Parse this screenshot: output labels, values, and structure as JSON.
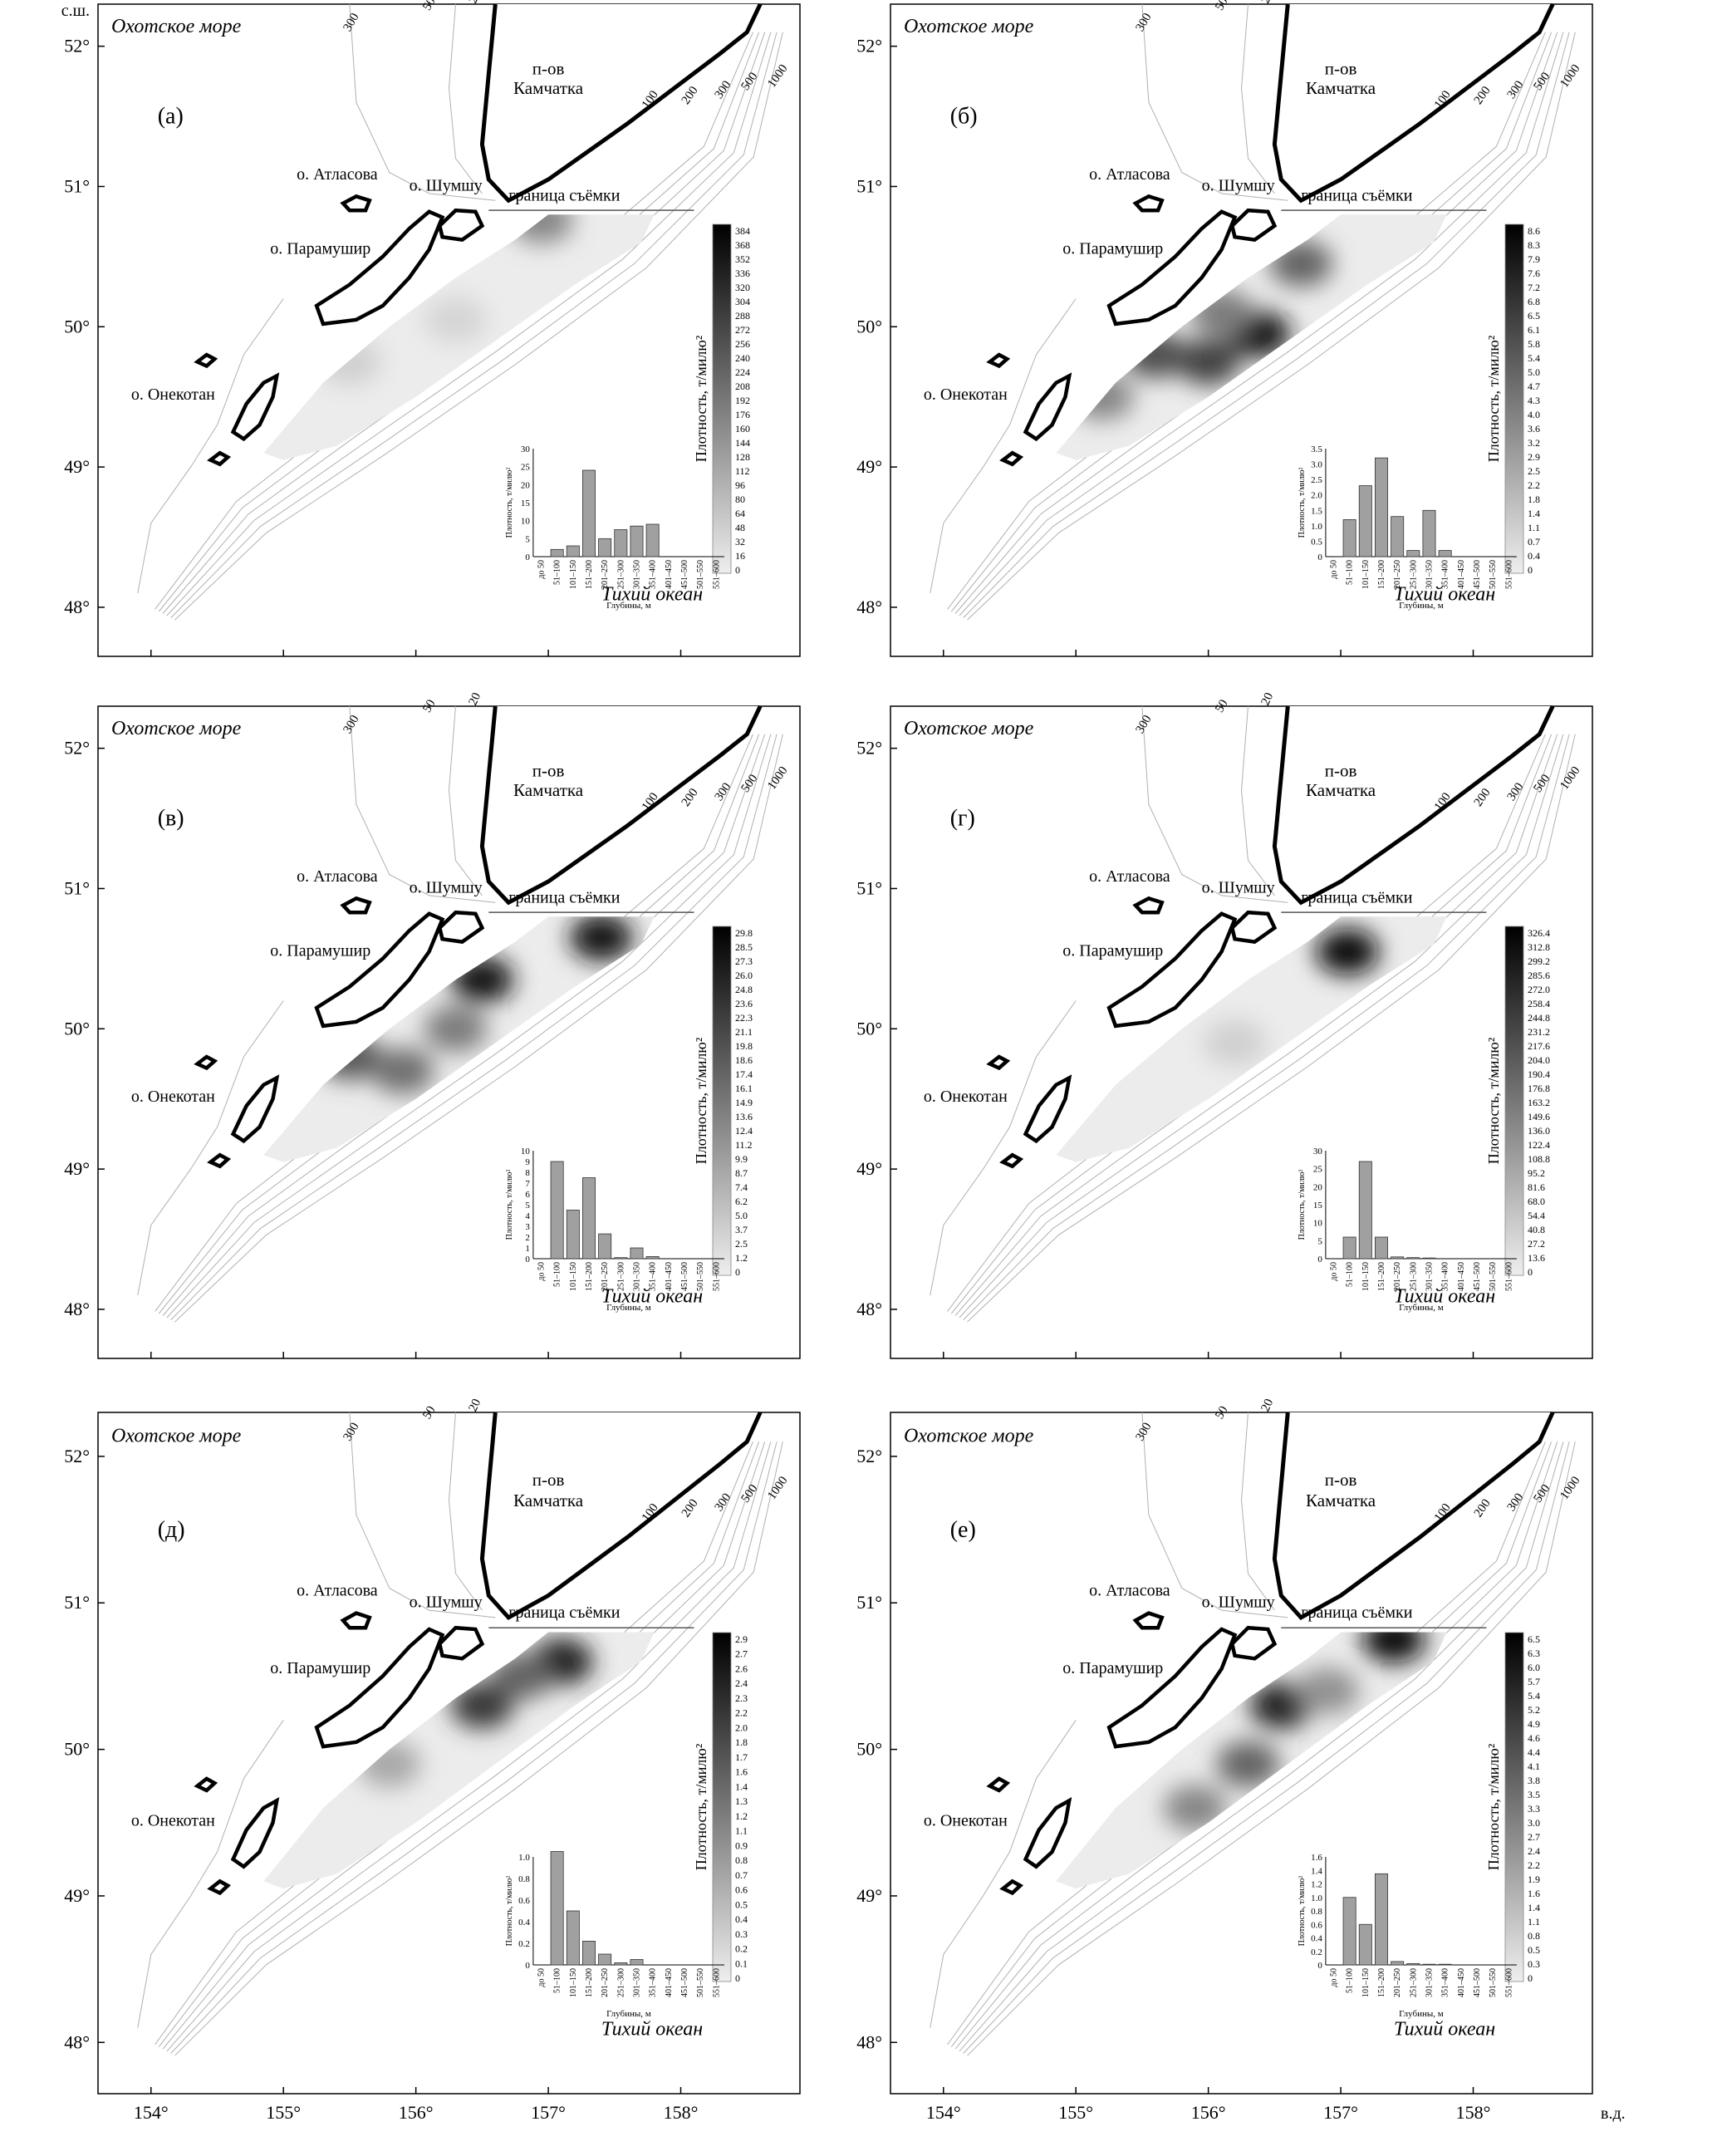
{
  "labels": {
    "sea": "Охотское море",
    "ocean": "Тихий океан",
    "peninsula_line1": "п-ов",
    "peninsula_line2": "Камчатка",
    "island_atlasova": "о. Атласова",
    "island_shumshu": "о. Шумшу",
    "island_paramushir": "о. Парамушир",
    "island_onekotan": "о. Онекотан",
    "survey_border": "граница съёмки",
    "colorbar_title": "Плотность, т/милю²",
    "hist_ylabel": "Плотность, т/милю²",
    "hist_xlabel": "Глубины, м",
    "lat_unit": "с.ш.",
    "lon_unit": "в.д."
  },
  "isobaths_north": [
    "300",
    "50",
    "20"
  ],
  "isobaths_east": [
    "100",
    "200",
    "300",
    "500",
    "1000"
  ],
  "lat_ticks": [
    "52°",
    "51°",
    "50°",
    "49°",
    "48°"
  ],
  "lon_ticks": [
    "154°",
    "155°",
    "156°",
    "157°",
    "158°"
  ],
  "depth_bins": [
    "до 50",
    "51–100",
    "101–150",
    "151–200",
    "201–250",
    "251–300",
    "301–350",
    "351–400",
    "401–450",
    "451–500",
    "501–550",
    "551–600"
  ],
  "panels": [
    {
      "letter": "(а)",
      "colorbar_ticks": [
        "384",
        "368",
        "352",
        "336",
        "320",
        "304",
        "288",
        "272",
        "256",
        "240",
        "224",
        "208",
        "192",
        "176",
        "160",
        "144",
        "128",
        "112",
        "96",
        "80",
        "64",
        "48",
        "32",
        "16",
        "0"
      ],
      "hist_yticks": [
        "30",
        "25",
        "20",
        "15",
        "10",
        "5",
        "0"
      ],
      "hist_ymax": 30,
      "hist_values": [
        0,
        2,
        3,
        24,
        5,
        7.5,
        8.5,
        9,
        0,
        0,
        0,
        0
      ],
      "hotspots": [
        {
          "x": 156.95,
          "y": 50.76,
          "v": 0.45
        },
        {
          "x": 155.5,
          "y": 49.75,
          "v": 0.12
        },
        {
          "x": 156.3,
          "y": 50.05,
          "v": 0.1
        }
      ]
    },
    {
      "letter": "(б)",
      "colorbar_ticks": [
        "8.6",
        "8.3",
        "7.9",
        "7.6",
        "7.2",
        "6.8",
        "6.5",
        "6.1",
        "5.8",
        "5.4",
        "5.0",
        "4.7",
        "4.3",
        "4.0",
        "3.6",
        "3.2",
        "2.9",
        "2.5",
        "2.2",
        "1.8",
        "1.4",
        "1.1",
        "0.7",
        "0.4",
        "0"
      ],
      "hist_yticks": [
        "3.5",
        "3.0",
        "2.5",
        "2.0",
        "1.5",
        "1.0",
        "0.5",
        "0"
      ],
      "hist_ymax": 3.5,
      "hist_values": [
        0,
        1.2,
        2.3,
        3.2,
        1.3,
        0.2,
        1.5,
        0.2,
        0,
        0,
        0,
        0
      ],
      "hotspots": [
        {
          "x": 156.38,
          "y": 49.95,
          "v": 0.95
        },
        {
          "x": 156.0,
          "y": 49.75,
          "v": 0.75
        },
        {
          "x": 155.6,
          "y": 49.8,
          "v": 0.7
        },
        {
          "x": 156.7,
          "y": 50.45,
          "v": 0.6
        },
        {
          "x": 155.2,
          "y": 49.5,
          "v": 0.45
        },
        {
          "x": 156.1,
          "y": 50.1,
          "v": 0.5
        }
      ]
    },
    {
      "letter": "(в)",
      "colorbar_ticks": [
        "29.8",
        "28.5",
        "27.3",
        "26.0",
        "24.8",
        "23.6",
        "22.3",
        "21.1",
        "19.8",
        "18.6",
        "17.4",
        "16.1",
        "14.9",
        "13.6",
        "12.4",
        "11.2",
        "9.9",
        "8.7",
        "7.4",
        "6.2",
        "5.0",
        "3.7",
        "2.5",
        "1.2",
        "0"
      ],
      "hist_yticks": [
        "10",
        "9",
        "8",
        "7",
        "6",
        "5",
        "4",
        "3",
        "2",
        "1",
        "0"
      ],
      "hist_ymax": 10,
      "hist_values": [
        0,
        9,
        4.5,
        7.5,
        2.3,
        0.1,
        1.0,
        0.2,
        0,
        0,
        0,
        0
      ],
      "hotspots": [
        {
          "x": 156.5,
          "y": 50.35,
          "v": 0.95
        },
        {
          "x": 157.4,
          "y": 50.65,
          "v": 0.95
        },
        {
          "x": 155.5,
          "y": 49.8,
          "v": 0.65
        },
        {
          "x": 155.9,
          "y": 49.7,
          "v": 0.55
        },
        {
          "x": 156.3,
          "y": 50.0,
          "v": 0.5
        }
      ]
    },
    {
      "letter": "(г)",
      "colorbar_ticks": [
        "326.4",
        "312.8",
        "299.2",
        "285.6",
        "272.0",
        "258.4",
        "244.8",
        "231.2",
        "217.6",
        "204.0",
        "190.4",
        "176.8",
        "163.2",
        "149.6",
        "136.0",
        "122.4",
        "108.8",
        "95.2",
        "81.6",
        "68.0",
        "54.4",
        "40.8",
        "27.2",
        "13.6",
        "0"
      ],
      "hist_yticks": [
        "30",
        "25",
        "20",
        "15",
        "10",
        "5",
        "0"
      ],
      "hist_ymax": 30,
      "hist_values": [
        0,
        6,
        27,
        6,
        0.5,
        0.3,
        0.2,
        0,
        0,
        0,
        0,
        0
      ],
      "hotspots": [
        {
          "x": 157.05,
          "y": 50.55,
          "v": 1.0
        },
        {
          "x": 156.2,
          "y": 49.9,
          "v": 0.12
        }
      ]
    },
    {
      "letter": "(д)",
      "colorbar_ticks": [
        "2.9",
        "2.7",
        "2.6",
        "2.4",
        "2.3",
        "2.2",
        "2.0",
        "1.8",
        "1.7",
        "1.6",
        "1.4",
        "1.3",
        "1.2",
        "1.1",
        "0.9",
        "0.8",
        "0.7",
        "0.6",
        "0.5",
        "0.4",
        "0.3",
        "0.2",
        "0.1",
        "0"
      ],
      "hist_yticks": [
        "1.0",
        "0.8",
        "0.6",
        "0.4",
        "0.2",
        "0"
      ],
      "hist_ymax": 1.1,
      "hist_values": [
        0,
        1.05,
        0.5,
        0.22,
        0.1,
        0.02,
        0.05,
        0,
        0,
        0,
        0,
        0
      ],
      "hotspots": [
        {
          "x": 157.1,
          "y": 50.6,
          "v": 0.9
        },
        {
          "x": 156.5,
          "y": 50.3,
          "v": 0.8
        },
        {
          "x": 156.8,
          "y": 50.5,
          "v": 0.6
        },
        {
          "x": 155.8,
          "y": 49.9,
          "v": 0.3
        }
      ]
    },
    {
      "letter": "(е)",
      "colorbar_ticks": [
        "6.5",
        "6.3",
        "6.0",
        "5.7",
        "5.4",
        "5.2",
        "4.9",
        "4.6",
        "4.4",
        "4.1",
        "3.8",
        "3.5",
        "3.3",
        "3.0",
        "2.7",
        "2.4",
        "2.2",
        "1.9",
        "1.6",
        "1.4",
        "1.1",
        "0.8",
        "0.5",
        "0.3",
        "0"
      ],
      "hist_yticks": [
        "1.6",
        "1.4",
        "1.2",
        "1.0",
        "0.8",
        "0.6",
        "0.4",
        "0.2",
        "0"
      ],
      "hist_ymax": 1.6,
      "hist_values": [
        0,
        1.0,
        0.6,
        1.35,
        0.05,
        0.02,
        0.01,
        0.01,
        0,
        0,
        0,
        0
      ],
      "hotspots": [
        {
          "x": 157.4,
          "y": 50.75,
          "v": 1.0
        },
        {
          "x": 156.55,
          "y": 50.3,
          "v": 0.9
        },
        {
          "x": 156.3,
          "y": 49.9,
          "v": 0.6
        },
        {
          "x": 155.9,
          "y": 49.6,
          "v": 0.45
        },
        {
          "x": 156.9,
          "y": 50.4,
          "v": 0.4
        }
      ]
    }
  ]
}
